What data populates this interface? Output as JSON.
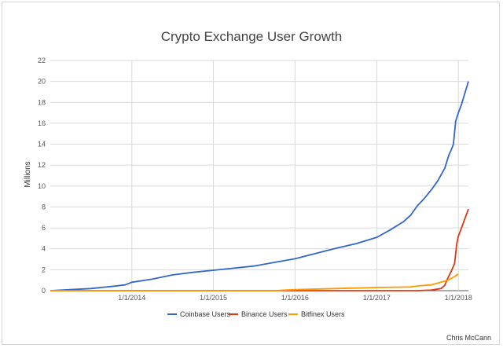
{
  "chart_data": {
    "type": "line",
    "title": "Crypto Exchange User Growth",
    "xlabel": "",
    "ylabel": "Millions",
    "ylim": [
      0,
      22
    ],
    "yticks": [
      0,
      2,
      4,
      6,
      8,
      10,
      12,
      14,
      16,
      18,
      20,
      22
    ],
    "xlim": [
      "2013-01-01",
      "2018-02-15"
    ],
    "xticks": [
      "1/1/2014",
      "1/1/2015",
      "1/1/2016",
      "1/1/2017",
      "1/1/2018"
    ],
    "grid": {
      "horizontal": true,
      "vertical": true
    },
    "legend": "bottom",
    "colors": {
      "Coinbase Users": "#3366cc",
      "Binance Users": "#dc3912",
      "Bitfinex Users": "#ff9900"
    },
    "series": [
      {
        "name": "Coinbase Users",
        "x": [
          "2013-01-01",
          "2013-04-01",
          "2013-07-01",
          "2013-10-01",
          "2013-12-01",
          "2014-01-01",
          "2014-04-01",
          "2014-07-01",
          "2014-10-01",
          "2015-01-01",
          "2015-04-01",
          "2015-07-01",
          "2015-10-01",
          "2016-01-01",
          "2016-04-01",
          "2016-07-01",
          "2016-10-01",
          "2017-01-01",
          "2017-03-01",
          "2017-05-01",
          "2017-06-01",
          "2017-07-01",
          "2017-08-01",
          "2017-09-01",
          "2017-10-01",
          "2017-11-01",
          "2017-11-20",
          "2017-12-01",
          "2017-12-10",
          "2017-12-20",
          "2018-01-01",
          "2018-01-15",
          "2018-02-15"
        ],
        "values": [
          0,
          0.1,
          0.2,
          0.4,
          0.55,
          0.8,
          1.1,
          1.5,
          1.75,
          1.95,
          2.15,
          2.35,
          2.7,
          3.05,
          3.55,
          4.05,
          4.5,
          5.1,
          5.8,
          6.6,
          7.2,
          8.1,
          8.8,
          9.6,
          10.5,
          11.7,
          13.0,
          13.5,
          14.0,
          16.2,
          17.0,
          17.8,
          20.0
        ]
      },
      {
        "name": "Binance Users",
        "x": [
          "2013-01-01",
          "2017-07-01",
          "2017-09-01",
          "2017-10-15",
          "2017-11-01",
          "2017-11-15",
          "2017-12-01",
          "2017-12-15",
          "2017-12-25",
          "2018-01-01",
          "2018-01-15",
          "2018-02-15"
        ],
        "values": [
          0,
          0,
          0.05,
          0.2,
          0.5,
          1.2,
          1.9,
          2.6,
          4.5,
          5.2,
          6.0,
          7.8
        ]
      },
      {
        "name": "Bitfinex Users",
        "x": [
          "2013-01-01",
          "2015-10-01",
          "2016-01-01",
          "2016-07-01",
          "2017-01-01",
          "2017-06-01",
          "2017-07-01",
          "2017-09-01",
          "2017-10-15",
          "2017-11-15",
          "2017-12-15",
          "2018-01-01"
        ],
        "values": [
          0,
          0,
          0.1,
          0.2,
          0.3,
          0.35,
          0.45,
          0.55,
          0.8,
          1.0,
          1.35,
          1.6
        ]
      }
    ],
    "credit": "Chris McCann"
  }
}
